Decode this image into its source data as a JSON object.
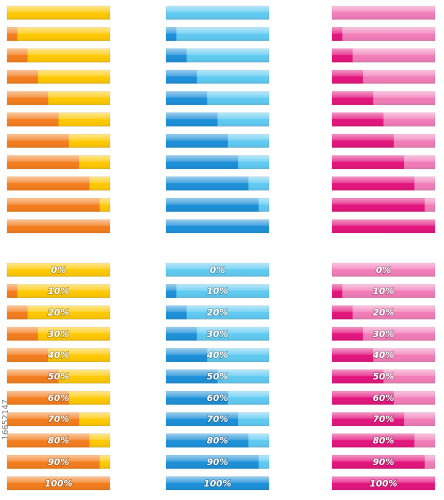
{
  "groups": [
    {
      "fill": "#f47c1c",
      "track": "#ffc800",
      "values": [
        0,
        10,
        20,
        30,
        40,
        50,
        60,
        70,
        80,
        90,
        100
      ]
    },
    {
      "fill": "#1b8fd8",
      "track": "#5fcaf2",
      "values": [
        0,
        10,
        20,
        30,
        40,
        50,
        60,
        70,
        80,
        90,
        100
      ]
    },
    {
      "fill": "#e3137c",
      "track": "#f27cb8",
      "values": [
        0,
        10,
        20,
        30,
        40,
        50,
        60,
        70,
        80,
        90,
        100
      ]
    },
    {
      "fill": "#f47c1c",
      "track": "#ffc800",
      "values": [
        0,
        10,
        20,
        30,
        40,
        50,
        60,
        70,
        80,
        90,
        100
      ],
      "value_labels": [
        "0%",
        "10%",
        "20%",
        "30%",
        "40%",
        "50%",
        "60%",
        "70%",
        "80%",
        "90%",
        "100%"
      ]
    },
    {
      "fill": "#1b8fd8",
      "track": "#5fcaf2",
      "values": [
        0,
        10,
        20,
        30,
        40,
        50,
        60,
        70,
        80,
        90,
        100
      ],
      "value_labels": [
        "0%",
        "10%",
        "20%",
        "30%",
        "40%",
        "50%",
        "60%",
        "70%",
        "80%",
        "90%",
        "100%"
      ]
    },
    {
      "fill": "#e3137c",
      "track": "#f27cb8",
      "values": [
        0,
        10,
        20,
        30,
        40,
        50,
        60,
        70,
        80,
        90,
        100
      ],
      "value_labels": [
        "0%",
        "10%",
        "20%",
        "30%",
        "40%",
        "50%",
        "60%",
        "70%",
        "80%",
        "90%",
        "100%"
      ]
    }
  ],
  "watermark": "16652147"
}
